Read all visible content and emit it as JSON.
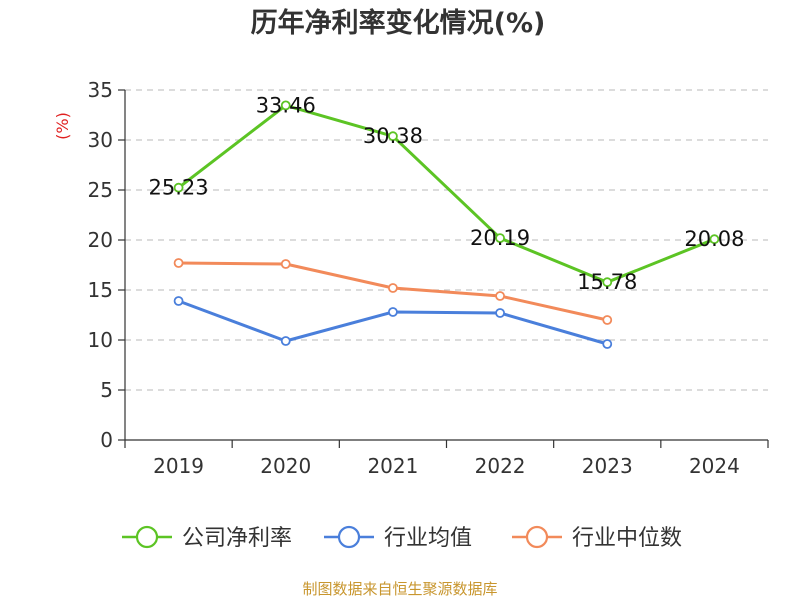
{
  "chart_data": {
    "type": "line",
    "title": "历年净利率变化情况(%)",
    "ylabel": "(%)",
    "xlabel": "",
    "categories": [
      "2019",
      "2020",
      "2021",
      "2022",
      "2023",
      "2024"
    ],
    "ylim": [
      0,
      35
    ],
    "yticks": [
      0,
      5,
      10,
      15,
      20,
      25,
      30,
      35
    ],
    "ytick_labels": [
      "0",
      "5",
      "10",
      "15",
      "20",
      "25",
      "30",
      "35"
    ],
    "grid": true,
    "legend_position": "bottom",
    "series": [
      {
        "name": "公司净利率",
        "color": "#5cc424",
        "values": [
          25.23,
          33.46,
          30.38,
          20.19,
          15.78,
          20.08
        ],
        "labels": [
          "25.23",
          "33.46",
          "30.38",
          "20.19",
          "15.78",
          "20.08"
        ],
        "show_labels": true
      },
      {
        "name": "行业均值",
        "color": "#4a7fdb",
        "values": [
          13.9,
          9.9,
          12.8,
          12.7,
          9.6,
          null
        ],
        "show_labels": false
      },
      {
        "name": "行业中位数",
        "color": "#f28a5a",
        "values": [
          17.7,
          17.6,
          15.2,
          14.4,
          12.0,
          null
        ],
        "show_labels": false
      }
    ]
  },
  "footer": {
    "source": "制图数据来自恒生聚源数据库"
  }
}
